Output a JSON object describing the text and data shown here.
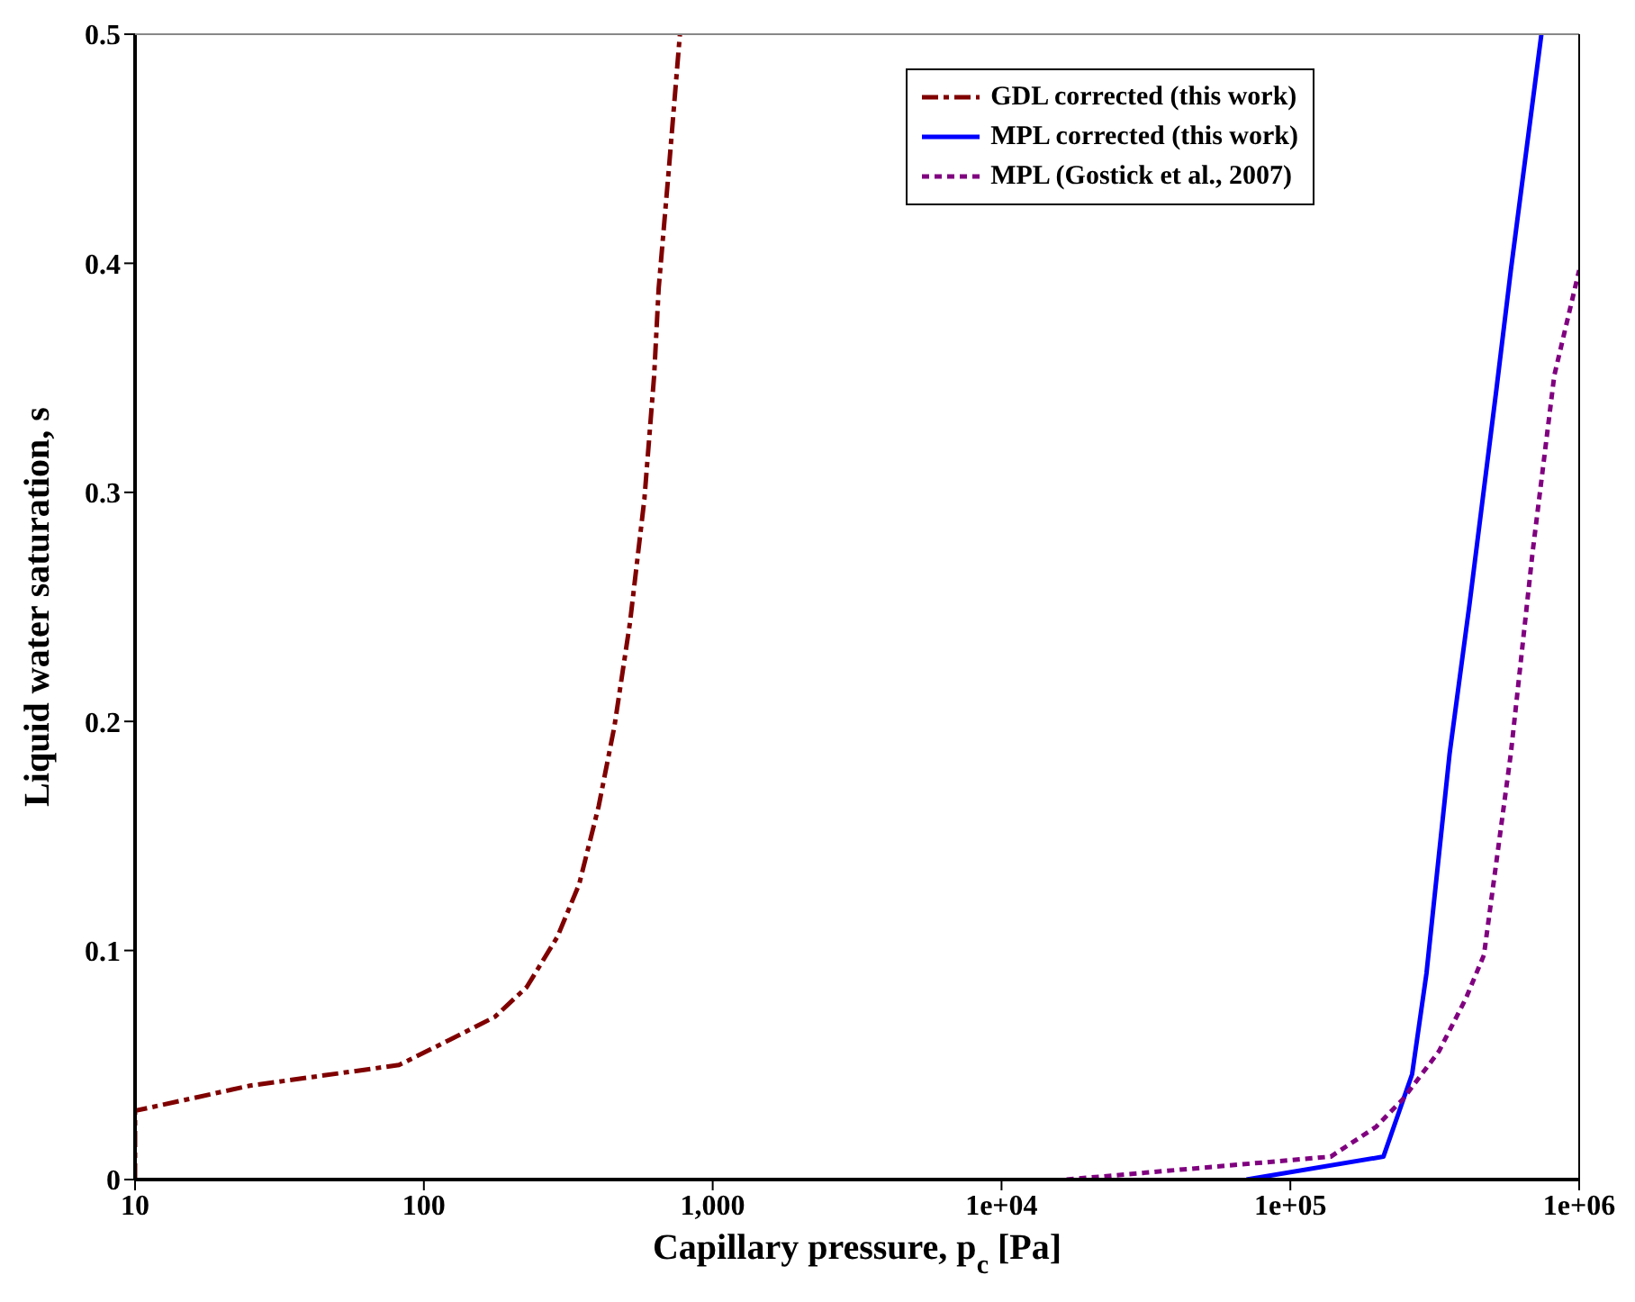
{
  "chart_data": {
    "type": "line",
    "xlabel": "Capillary pressure, p$_{c}$ [Pa]",
    "ylabel": "Liquid water saturation, s",
    "log": "x",
    "xlim": [
      10,
      1000000
    ],
    "xticks": [
      10,
      100,
      {
        "value": 1000,
        "label": "1,000"
      },
      {
        "value": 10000,
        "label": "1e+04"
      },
      {
        "value": 100000,
        "label": "1e+05"
      },
      {
        "value": 1000000,
        "label": "1e+06"
      }
    ],
    "ylim": [
      0,
      0.5
    ],
    "yticks": [
      0,
      0.1,
      0.2,
      0.3,
      0.4,
      0.5
    ],
    "grid": false,
    "legend": "top right",
    "marker": "none",
    "series": [
      {
        "name": "GDL corrected (this work)",
        "color": "#800000",
        "line_style": "dashed",
        "x": [
          10,
          10,
          25,
          82,
          123,
          176,
          227,
          290,
          345,
          403,
          457,
          517,
          580,
          627,
          650,
          707,
          770
        ],
        "values": [
          0,
          0.03,
          0.041,
          0.05,
          0.061,
          0.071,
          0.084,
          0.106,
          0.129,
          0.163,
          0.198,
          0.243,
          0.297,
          0.351,
          0.389,
          0.443,
          0.5
        ]
      },
      {
        "name": "MPL corrected (this work)",
        "color": "#0000ff",
        "line_style": "solid",
        "x": [
          70500,
          210000,
          264000,
          296000,
          356000,
          417000,
          517000,
          580000,
          740000
        ],
        "values": [
          0,
          0.01,
          0.046,
          0.09,
          0.186,
          0.251,
          0.345,
          0.397,
          0.5
        ]
      },
      {
        "name": "MPL (Gostick et al., 2007)",
        "color": "#800080",
        "line_style": "dotted",
        "x": [
          16800,
          138000,
          198000,
          245000,
          327000,
          405000,
          468000,
          580000,
          690000,
          820000,
          1000000
        ],
        "values": [
          0,
          0.01,
          0.023,
          0.035,
          0.056,
          0.079,
          0.098,
          0.186,
          0.274,
          0.351,
          0.397
        ]
      }
    ]
  }
}
